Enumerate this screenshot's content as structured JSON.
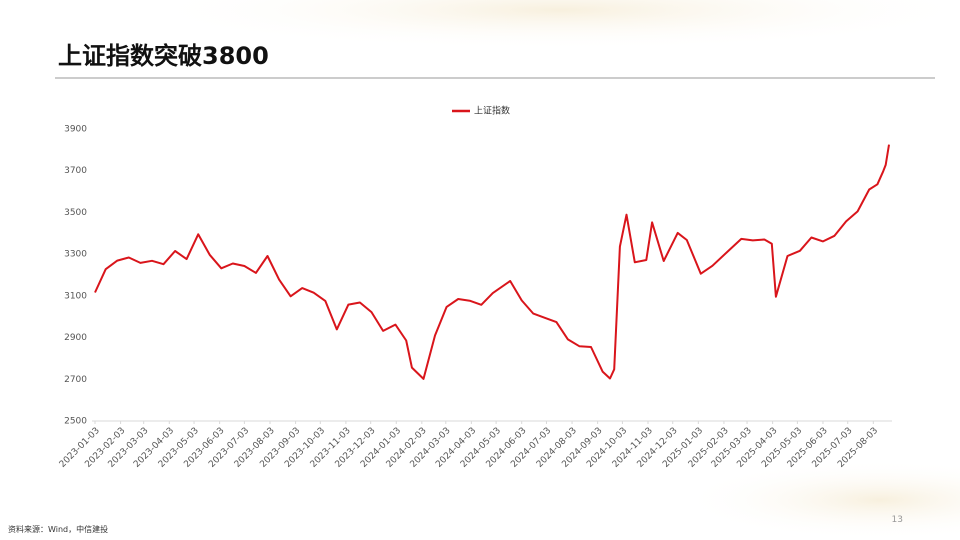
{
  "chart_data": {
    "type": "line",
    "title": "上证指数突破3800",
    "x": [
      "2023-01-03",
      "2023-01-16",
      "2023-01-30",
      "2023-02-13",
      "2023-02-27",
      "2023-03-13",
      "2023-03-27",
      "2023-04-10",
      "2023-04-24",
      "2023-05-08",
      "2023-05-22",
      "2023-06-05",
      "2023-06-19",
      "2023-07-03",
      "2023-07-17",
      "2023-07-31",
      "2023-08-14",
      "2023-08-28",
      "2023-09-11",
      "2023-09-25",
      "2023-10-09",
      "2023-10-23",
      "2023-11-06",
      "2023-11-20",
      "2023-12-04",
      "2023-12-18",
      "2024-01-02",
      "2024-01-15",
      "2024-01-22",
      "2024-02-05",
      "2024-02-19",
      "2024-03-04",
      "2024-03-18",
      "2024-04-01",
      "2024-04-15",
      "2024-04-29",
      "2024-05-20",
      "2024-06-03",
      "2024-06-17",
      "2024-07-01",
      "2024-07-15",
      "2024-07-29",
      "2024-08-12",
      "2024-08-26",
      "2024-09-09",
      "2024-09-18",
      "2024-09-23",
      "2024-09-30",
      "2024-10-08",
      "2024-10-18",
      "2024-11-01",
      "2024-11-08",
      "2024-11-22",
      "2024-12-09",
      "2024-12-20",
      "2025-01-06",
      "2025-01-20",
      "2025-02-10",
      "2025-02-24",
      "2025-03-10",
      "2025-03-24",
      "2025-04-02",
      "2025-04-07",
      "2025-04-21",
      "2025-05-06",
      "2025-05-20",
      "2025-06-03",
      "2025-06-17",
      "2025-07-01",
      "2025-07-15",
      "2025-07-29",
      "2025-08-08",
      "2025-08-15",
      "2025-08-18",
      "2025-08-22"
    ],
    "series": [
      {
        "name": "上证指数",
        "color": "#d9151b",
        "values": [
          3116,
          3228,
          3269,
          3284,
          3258,
          3268,
          3252,
          3315,
          3276,
          3395,
          3297,
          3232,
          3255,
          3243,
          3210,
          3291,
          3178,
          3098,
          3137,
          3115,
          3076,
          2939,
          3058,
          3068,
          3022,
          2932,
          2962,
          2886,
          2756,
          2702,
          2910,
          3047,
          3085,
          3077,
          3057,
          3113,
          3171,
          3078,
          3015,
          2995,
          2974,
          2891,
          2858,
          2855,
          2737,
          2704,
          2748,
          3336,
          3489,
          3261,
          3272,
          3452,
          3267,
          3402,
          3368,
          3206,
          3244,
          3322,
          3373,
          3366,
          3370,
          3350,
          3096,
          3291,
          3316,
          3380,
          3361,
          3388,
          3457,
          3505,
          3610,
          3635,
          3697,
          3728,
          3825
        ]
      }
    ],
    "xlim": [
      "2023-01-03",
      "2025-08-22"
    ],
    "xticks": [
      "2023-01-03",
      "2023-02-03",
      "2023-03-03",
      "2023-04-03",
      "2023-05-03",
      "2023-06-03",
      "2023-07-03",
      "2023-08-03",
      "2023-09-03",
      "2023-10-03",
      "2023-11-03",
      "2023-12-03",
      "2024-01-03",
      "2024-02-03",
      "2024-03-03",
      "2024-04-03",
      "2024-05-03",
      "2024-06-03",
      "2024-07-03",
      "2024-08-03",
      "2024-09-03",
      "2024-10-03",
      "2024-11-03",
      "2024-12-03",
      "2025-01-03",
      "2025-02-03",
      "2025-03-03",
      "2025-04-03",
      "2025-05-03",
      "2025-06-03",
      "2025-07-03",
      "2025-08-03"
    ],
    "ylim": [
      2500,
      3900
    ],
    "yticks": [
      2500,
      2700,
      2900,
      3100,
      3300,
      3500,
      3700,
      3900
    ],
    "grid": false
  },
  "footer": {
    "source": "资料来源：Wind，中信建投",
    "page": "13"
  }
}
